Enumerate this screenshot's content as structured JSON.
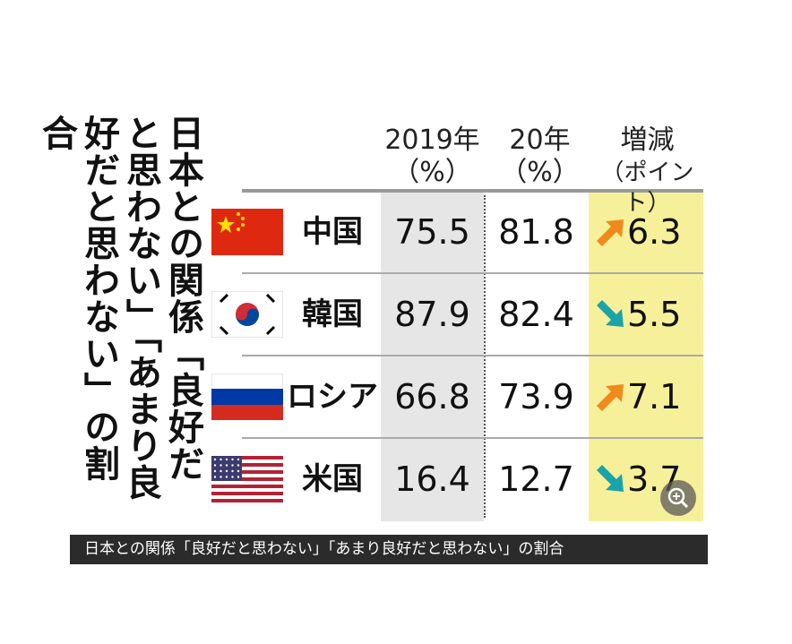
{
  "title": "日本との関係「良好だと思わない」「あまり良好だと思わない」の割合",
  "table": {
    "header": [
      "2019年",
      "（%）",
      "20年",
      "（%）",
      "増減",
      "（ポイント）"
    ],
    "rows": [
      [
        "中国",
        "75.5",
        "81.8",
        "6.3"
      ],
      [
        "韓国",
        "87.9",
        "82.4",
        "5.5"
      ],
      [
        "ロシア",
        "66.8",
        "73.9",
        "7.1"
      ],
      [
        "米国",
        "16.4",
        "12.7",
        "3.7"
      ]
    ]
  },
  "caption": "日本との関係「良好だと思わない」「あまり良好だと思わない」の割合"
}
